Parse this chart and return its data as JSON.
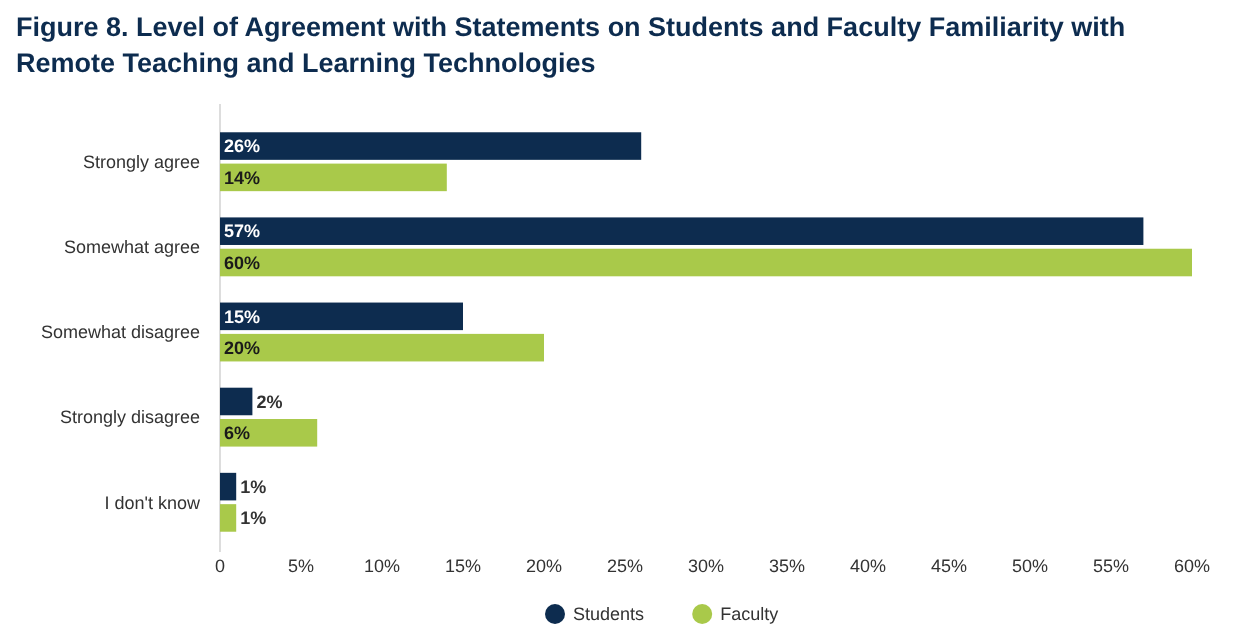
{
  "chart_data": {
    "type": "bar",
    "orientation": "horizontal",
    "title": "Figure 8. Level of Agreement with Statements on Students and Faculty Familiarity with Remote Teaching and Learning Technologies",
    "categories": [
      "Strongly agree",
      "Somewhat agree",
      "Somewhat disagree",
      "Strongly disagree",
      "I don't know"
    ],
    "series": [
      {
        "name": "Students",
        "color": "#0d2c4f",
        "values": [
          26,
          57,
          15,
          2,
          1
        ],
        "value_labels": [
          "26%",
          "57%",
          "15%",
          "2%",
          "1%"
        ]
      },
      {
        "name": "Faculty",
        "color": "#a9c94a",
        "values": [
          14,
          60,
          20,
          6,
          1
        ],
        "value_labels": [
          "14%",
          "60%",
          "20%",
          "6%",
          "1%"
        ]
      }
    ],
    "xlim": [
      0,
      60
    ],
    "xticks": [
      {
        "value": 0,
        "label": "0"
      },
      {
        "value": 5,
        "label": "5%"
      },
      {
        "value": 10,
        "label": "10%"
      },
      {
        "value": 15,
        "label": "15%"
      },
      {
        "value": 20,
        "label": "20%"
      },
      {
        "value": 25,
        "label": "25%"
      },
      {
        "value": 30,
        "label": "30%"
      },
      {
        "value": 35,
        "label": "35%"
      },
      {
        "value": 40,
        "label": "40%"
      },
      {
        "value": 45,
        "label": "45%"
      },
      {
        "value": 50,
        "label": "50%"
      },
      {
        "value": 55,
        "label": "55%"
      },
      {
        "value": 60,
        "label": "60%"
      }
    ],
    "legend": "bottom",
    "grid": false
  }
}
